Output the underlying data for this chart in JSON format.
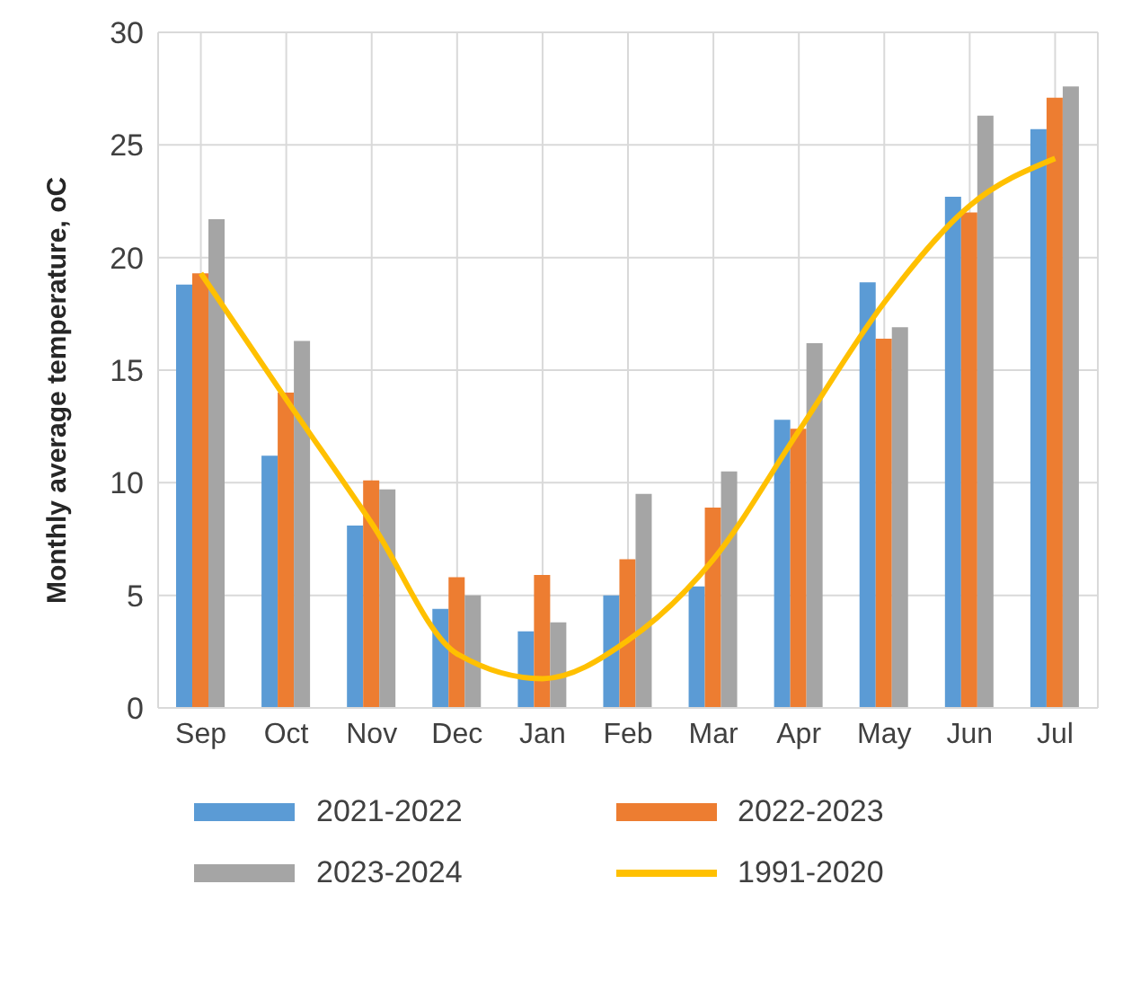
{
  "chart_data": {
    "type": "bar",
    "ylabel": "Monthly average temperature, oC",
    "categories": [
      "Sep",
      "Oct",
      "Nov",
      "Dec",
      "Jan",
      "Feb",
      "Mar",
      "Apr",
      "May",
      "Jun",
      "Jul"
    ],
    "series": [
      {
        "name": "2021-2022",
        "color": "#5b9bd5",
        "values": [
          18.8,
          11.2,
          8.1,
          4.4,
          3.4,
          5.0,
          5.4,
          12.8,
          18.9,
          22.7,
          25.7
        ]
      },
      {
        "name": "2022-2023",
        "color": "#ed7d31",
        "values": [
          19.3,
          14.0,
          10.1,
          5.8,
          5.9,
          6.6,
          8.9,
          12.4,
          16.4,
          22.0,
          27.1
        ]
      },
      {
        "name": "2023-2024",
        "color": "#a5a5a5",
        "values": [
          21.7,
          16.3,
          9.7,
          5.0,
          3.8,
          9.5,
          10.5,
          16.2,
          16.9,
          26.3,
          27.6
        ]
      },
      {
        "name": "1991-2020",
        "type": "line",
        "color": "#ffc000",
        "values": [
          19.3,
          13.7,
          8.2,
          2.4,
          1.3,
          3.0,
          6.6,
          12.3,
          18.0,
          22.3,
          24.4
        ]
      }
    ],
    "ylim": [
      0,
      30
    ],
    "yticks": [
      0,
      5,
      10,
      15,
      20,
      25,
      30
    ],
    "grid": true,
    "legend": "bottom",
    "marker": "none",
    "line_style": "solid"
  }
}
